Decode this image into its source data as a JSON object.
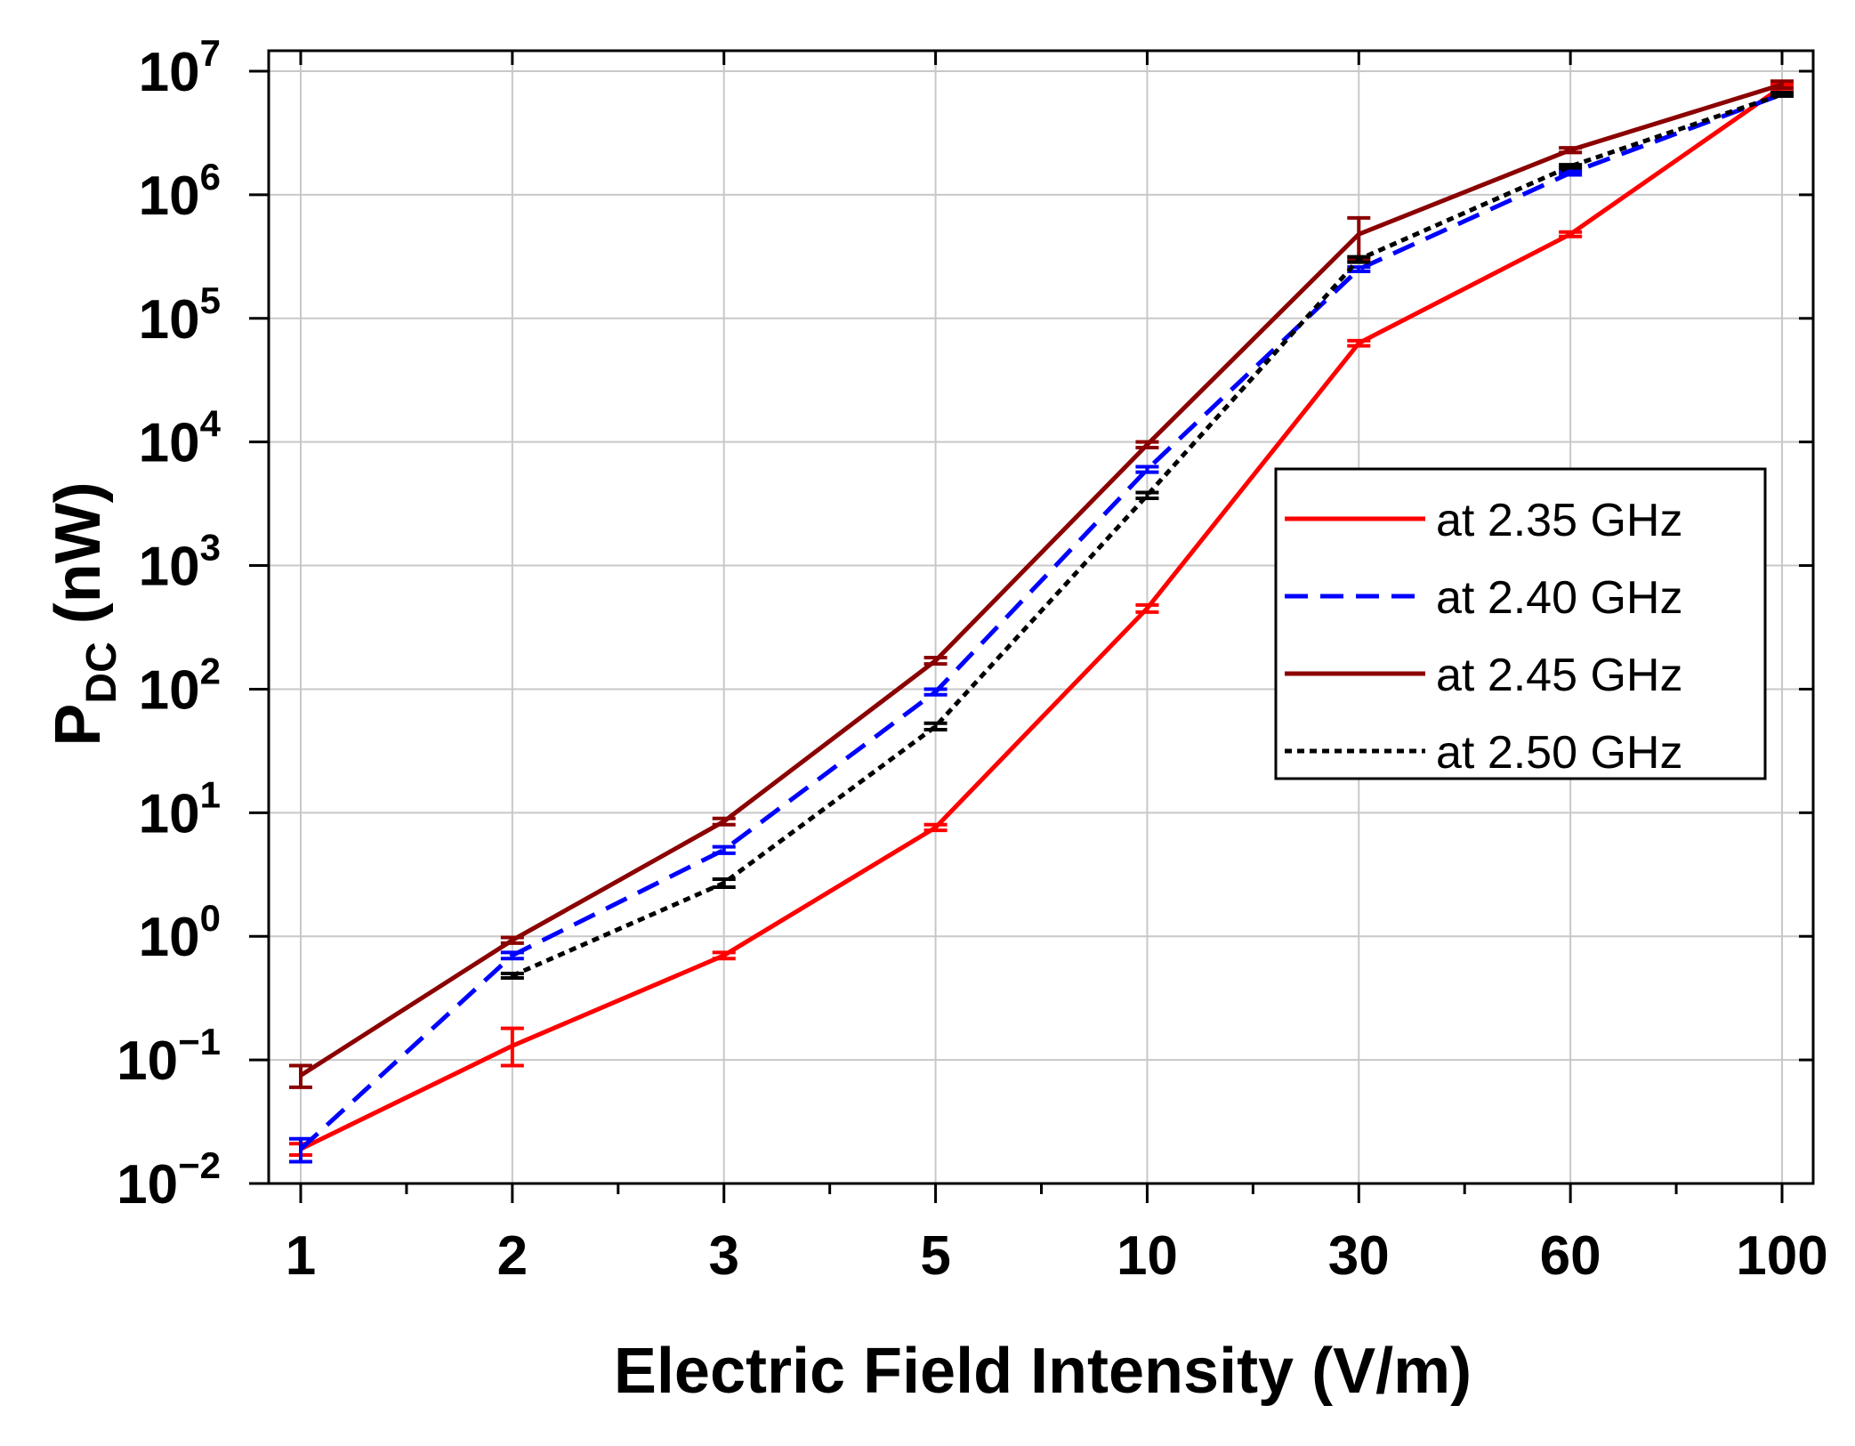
{
  "chart_data": {
    "type": "line",
    "title": "",
    "xlabel": "Electric Field Intensity (V/m)",
    "ylabel": {
      "main": "P",
      "sub": "DC",
      "unit": " (nW)"
    },
    "yscale": "log",
    "ylim": [
      0.01,
      10000000
    ],
    "x_ticks": [
      {
        "label": "1"
      },
      {
        "label": "2"
      },
      {
        "label": "3"
      },
      {
        "label": "5"
      },
      {
        "label": "10"
      },
      {
        "label": "30"
      },
      {
        "label": "60"
      },
      {
        "label": "100"
      }
    ],
    "y_ticks": [
      {
        "exp": "−2"
      },
      {
        "exp": "−1"
      },
      {
        "exp": "0"
      },
      {
        "exp": "1"
      },
      {
        "exp": "2"
      },
      {
        "exp": "3"
      },
      {
        "exp": "4"
      },
      {
        "exp": "5"
      },
      {
        "exp": "6"
      },
      {
        "exp": "7"
      }
    ],
    "y_tick_base": "10",
    "grid": true,
    "legend_position": "right-middle",
    "series": [
      {
        "name": "at 2.35 GHz",
        "color": "#ff0000",
        "style": "solid",
        "values": [
          0.019,
          0.13,
          0.7,
          7.6,
          450,
          63000,
          480000,
          7500000
        ],
        "err_low": [
          0.017,
          0.09,
          0.66,
          7.2,
          420,
          60000,
          460000,
          7200000
        ],
        "err_high": [
          0.021,
          0.18,
          0.74,
          8.0,
          480,
          66000,
          500000,
          7800000
        ]
      },
      {
        "name": "at 2.40 GHz",
        "color": "#0000ff",
        "style": "dashed",
        "values": [
          0.019,
          0.7,
          5.0,
          95,
          6000,
          250000,
          1500000,
          6500000
        ],
        "err_low": [
          0.015,
          0.66,
          4.7,
          90,
          5700,
          240000,
          1450000,
          6300000
        ],
        "err_high": [
          0.023,
          0.74,
          5.3,
          100,
          6300,
          260000,
          1550000,
          6700000
        ]
      },
      {
        "name": "at 2.45 GHz",
        "color": "#8b0000",
        "style": "solid",
        "values": [
          0.075,
          0.93,
          8.5,
          170,
          9500,
          480000,
          2300000,
          7800000
        ],
        "err_low": [
          0.06,
          0.88,
          8.0,
          160,
          9000,
          300000,
          2200000,
          7300000
        ],
        "err_high": [
          0.09,
          0.98,
          9.0,
          180,
          10000,
          650000,
          2400000,
          8300000
        ]
      },
      {
        "name": "at 2.50 GHz",
        "color": "#000000",
        "style": "dotted",
        "values": [
          null,
          0.48,
          2.7,
          50,
          3700,
          300000,
          1700000,
          6500000
        ],
        "err_low": [
          null,
          0.46,
          2.5,
          47,
          3500,
          285000,
          1650000,
          6300000
        ],
        "err_high": [
          null,
          0.5,
          2.9,
          53,
          3900,
          315000,
          1750000,
          6700000
        ]
      }
    ]
  }
}
